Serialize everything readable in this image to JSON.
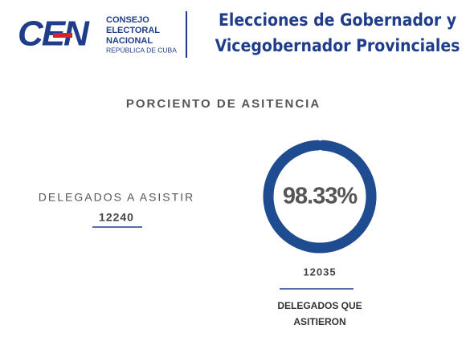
{
  "header": {
    "logo": "CEN",
    "logo_lines": [
      "CONSEJO",
      "ELECTORAL",
      "NACIONAL"
    ],
    "logo_sub": "REPÚBLICA DE CUBA",
    "title_lines": [
      "Elecciones de Gobernador y",
      "Vicegobernador Provinciales"
    ]
  },
  "chart_data": {
    "type": "donut",
    "title": "PORCIENTO DE ASITENCIA",
    "values": [
      98.33
    ],
    "value_labels": [
      "98.33%"
    ],
    "color": "#1f4b91"
  },
  "left": {
    "label": "DELEGADOS A ASISTIR",
    "value": 12240
  },
  "right": {
    "value": 12035,
    "label_lines": [
      "DELEGADOS QUE",
      "ASITIERON"
    ]
  }
}
